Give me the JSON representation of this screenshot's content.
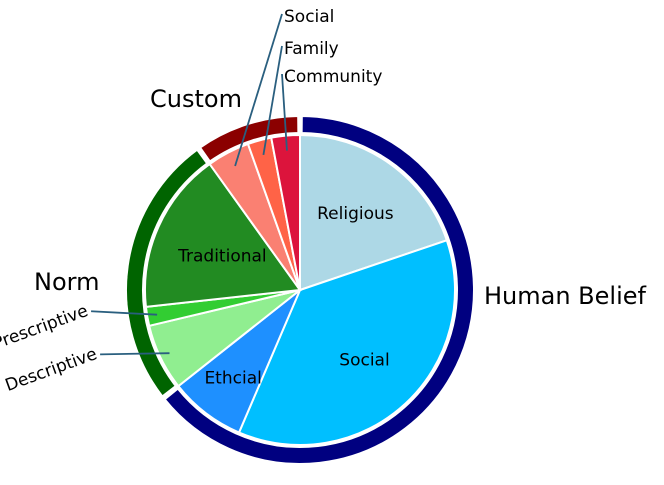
{
  "chart_data": {
    "type": "pie",
    "subtype": "nested-sunburst",
    "title": "",
    "groups": [
      {
        "name": "Human Belief",
        "color": "#000080",
        "segments": [
          {
            "label": "Religious",
            "value": 20,
            "color": "#ADD8E6"
          },
          {
            "label": "Social",
            "value": 37,
            "color": "#00BFFF"
          },
          {
            "label": "Ethcial",
            "value": 8,
            "color": "#1E90FF"
          }
        ]
      },
      {
        "name": "Norm",
        "color": "#006400",
        "segments": [
          {
            "label": "Descriptive",
            "value": 7,
            "color": "#90EE90"
          },
          {
            "label": "Prescriptive",
            "value": 2,
            "color": "#32CD32"
          },
          {
            "label": "Traditional",
            "value": 17,
            "color": "#228B22"
          }
        ]
      },
      {
        "name": "Custom",
        "color": "#8B0000",
        "segments": [
          {
            "label": "Social",
            "value": 4.5,
            "color": "#FA8072"
          },
          {
            "label": "Family",
            "value": 2.5,
            "color": "#FF6347"
          },
          {
            "label": "Community",
            "value": 3,
            "color": "#DC143C"
          }
        ]
      }
    ]
  }
}
